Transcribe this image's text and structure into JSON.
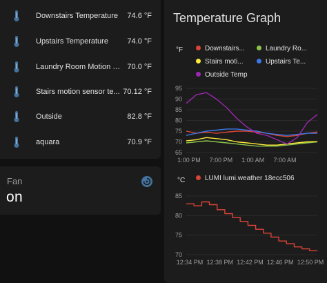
{
  "sensors": [
    {
      "name": "Downstairs Temperature",
      "value": "74.6 °F"
    },
    {
      "name": "Upstairs Temperature",
      "value": "74.0 °F"
    },
    {
      "name": "Laundry Room Motion Se...",
      "value": "70.0 °F"
    },
    {
      "name": "Stairs motion sensor te...",
      "value": "70.12 °F"
    },
    {
      "name": "Outside",
      "value": "82.8 °F"
    },
    {
      "name": "aquara",
      "value": "70.9 °F"
    }
  ],
  "fan": {
    "title": "Fan",
    "state": "on"
  },
  "graph": {
    "title": "Temperature Graph",
    "f_chart": {
      "unit": "°F"
    },
    "c_chart": {
      "unit": "°C"
    }
  },
  "colors": {
    "accent_icon": "#44739e",
    "downstairs": "#db4437",
    "laundry": "#8bc34a",
    "stairs": "#ffeb3b",
    "upstairs": "#3b78e7",
    "outside": "#9c27b0",
    "lumi": "#db4437"
  },
  "chart_data": [
    {
      "type": "line",
      "ylabel": "°F",
      "ylim": [
        65,
        95
      ],
      "yticks": [
        "95",
        "90",
        "85",
        "80",
        "75",
        "70",
        "65"
      ],
      "xticks": [
        "1:00 PM",
        "7:00 PM",
        "1:00 AM",
        "7:00 AM"
      ],
      "x": [
        "12:30 PM",
        "1:00 PM",
        "3:00 PM",
        "5:00 PM",
        "7:00 PM",
        "9:00 PM",
        "11:00 PM",
        "1:00 AM",
        "3:00 AM",
        "5:00 AM",
        "7:00 AM",
        "9:00 AM",
        "11:00 AM",
        "12:30 PM"
      ],
      "series": [
        {
          "name": "Downstairs...",
          "color": "#db4437",
          "values": [
            75,
            74,
            74.5,
            74,
            74.5,
            75,
            75,
            74.5,
            74,
            73,
            72.5,
            73,
            74,
            74.6
          ]
        },
        {
          "name": "Laundry Ro...",
          "color": "#8bc34a",
          "values": [
            69.5,
            70,
            70.5,
            70,
            69.5,
            69,
            68.5,
            68,
            68,
            68,
            68.5,
            69,
            69.5,
            70
          ]
        },
        {
          "name": "Stairs moti...",
          "color": "#ffeb3b",
          "values": [
            70.5,
            71,
            72,
            71.5,
            71,
            70,
            69.5,
            69,
            68.5,
            68.5,
            69,
            69.5,
            70,
            70.1
          ]
        },
        {
          "name": "Upstairs Te...",
          "color": "#3b78e7",
          "values": [
            73,
            74,
            75,
            75.5,
            76,
            76,
            75.5,
            75,
            74,
            73.5,
            73,
            73.5,
            74,
            74
          ]
        },
        {
          "name": "Outside Temp",
          "color": "#9c27b0",
          "values": [
            88,
            92,
            93,
            90,
            86,
            81,
            77,
            74,
            73,
            71,
            69,
            72,
            79,
            82.8
          ]
        }
      ]
    },
    {
      "type": "line",
      "ylabel": "°C",
      "ylim": [
        70,
        85
      ],
      "yticks": [
        "85",
        "80",
        "75",
        "70"
      ],
      "xticks": [
        "12:34 PM",
        "12:38 PM",
        "12:42 PM",
        "12:46 PM",
        "12:50 PM"
      ],
      "x": [
        "12:34 PM",
        "12:35 PM",
        "12:36 PM",
        "12:37 PM",
        "12:38 PM",
        "12:39 PM",
        "12:40 PM",
        "12:41 PM",
        "12:42 PM",
        "12:43 PM",
        "12:44 PM",
        "12:45 PM",
        "12:46 PM",
        "12:47 PM",
        "12:48 PM",
        "12:49 PM",
        "12:50 PM",
        "12:51 PM"
      ],
      "series": [
        {
          "name": "LUMI lumi.weather 18ecc506",
          "color": "#db4437",
          "values": [
            83,
            82.5,
            83.5,
            82.8,
            81.5,
            80.5,
            79.5,
            78.5,
            77.5,
            76.5,
            75.5,
            74.5,
            73.5,
            72.8,
            72,
            71.5,
            71,
            71
          ]
        }
      ]
    }
  ]
}
